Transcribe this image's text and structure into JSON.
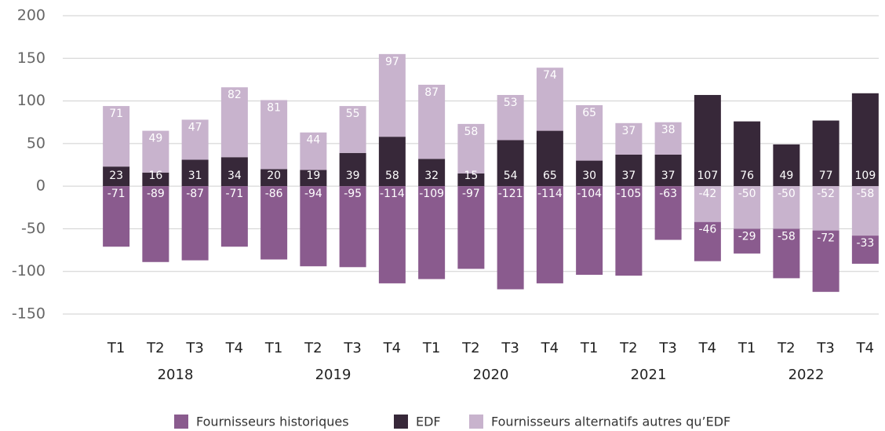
{
  "chart_data": {
    "type": "stacked_bar",
    "categories": [
      "T1",
      "T2",
      "T3",
      "T4",
      "T1",
      "T2",
      "T3",
      "T4",
      "T1",
      "T2",
      "T3",
      "T4",
      "T1",
      "T2",
      "T3",
      "T4",
      "T1",
      "T2",
      "T3",
      "T4"
    ],
    "years": [
      "2018",
      "2019",
      "2020",
      "2021",
      "2022"
    ],
    "series": [
      {
        "name": "Fournisseurs historiques",
        "color": "#8a5b8e",
        "values": [
          -71,
          -89,
          -87,
          -71,
          -86,
          -94,
          -95,
          -114,
          -109,
          -97,
          -121,
          -114,
          -104,
          -105,
          -63,
          -46,
          -29,
          -58,
          -72,
          -33
        ]
      },
      {
        "name": "EDF",
        "color": "#372839",
        "values": [
          23,
          16,
          31,
          34,
          20,
          19,
          39,
          58,
          32,
          15,
          54,
          65,
          30,
          37,
          37,
          107,
          76,
          49,
          77,
          109
        ]
      },
      {
        "name": "Fournisseurs alternatifs autres qu’EDF",
        "color": "#c8b3cd",
        "values": [
          71,
          49,
          47,
          82,
          81,
          44,
          55,
          97,
          87,
          58,
          53,
          74,
          65,
          37,
          38,
          -42,
          -50,
          -50,
          -52,
          -58
        ]
      }
    ],
    "ylim": [
      -150,
      200
    ],
    "yticks": [
      -150,
      -100,
      -50,
      0,
      50,
      100,
      150,
      200
    ],
    "grid": true
  }
}
